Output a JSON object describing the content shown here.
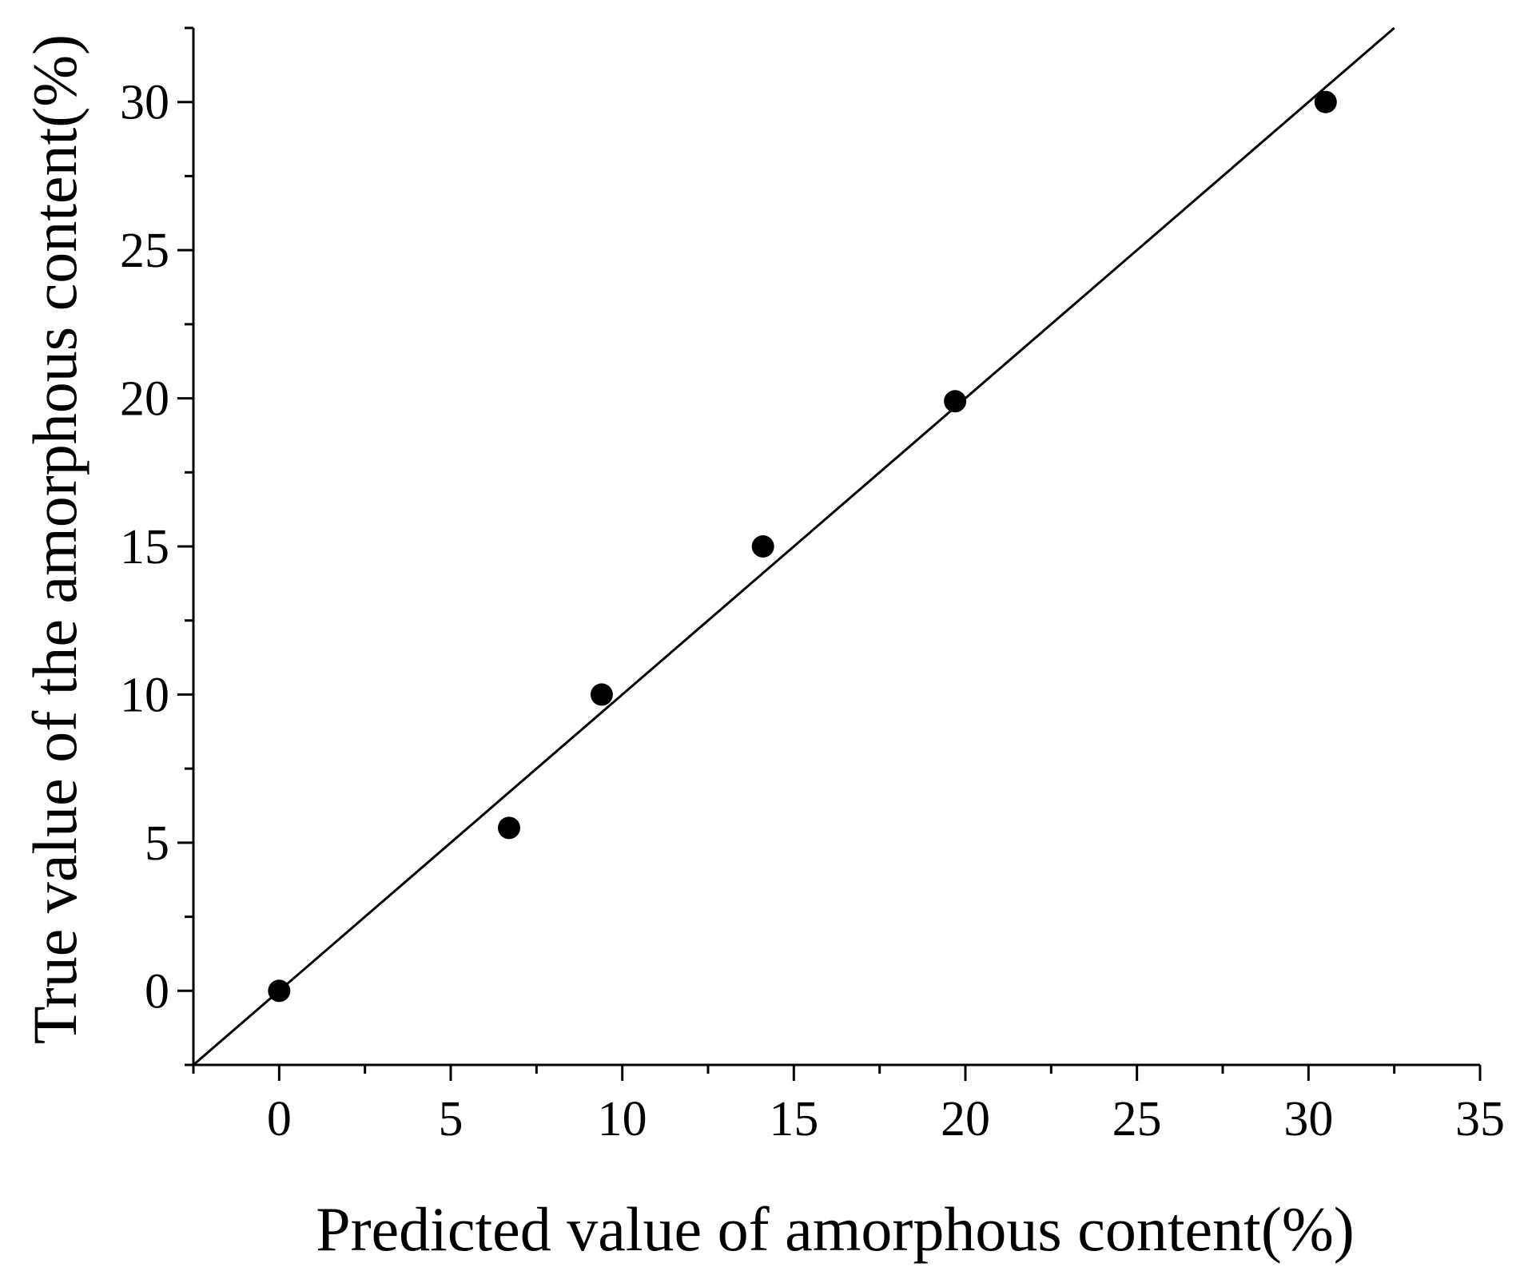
{
  "chart_data": {
    "type": "scatter",
    "xlabel": "Predicted value of amorphous content(%)",
    "ylabel": "True value of the amorphous content(%)",
    "xlim": [
      -2.5,
      35
    ],
    "ylim": [
      -2.5,
      32.5
    ],
    "xticks": [
      0,
      5,
      10,
      15,
      20,
      25,
      30,
      35
    ],
    "yticks": [
      0,
      5,
      10,
      15,
      20,
      25,
      30
    ],
    "minor_ticks": true,
    "grid": false,
    "legend": "none",
    "series": [
      {
        "type": "scatter",
        "marker": "filled-circle",
        "color": "#000000",
        "points": [
          {
            "x": 0.0,
            "y": 0.0
          },
          {
            "x": 6.7,
            "y": 5.5
          },
          {
            "x": 9.4,
            "y": 10.0
          },
          {
            "x": 14.1,
            "y": 15.0
          },
          {
            "x": 19.7,
            "y": 19.9
          },
          {
            "x": 30.5,
            "y": 30.0
          }
        ]
      },
      {
        "type": "line",
        "color": "#000000",
        "points": [
          {
            "x": -2.5,
            "y": -2.5
          },
          {
            "x": 32.5,
            "y": 32.5
          }
        ]
      }
    ]
  }
}
